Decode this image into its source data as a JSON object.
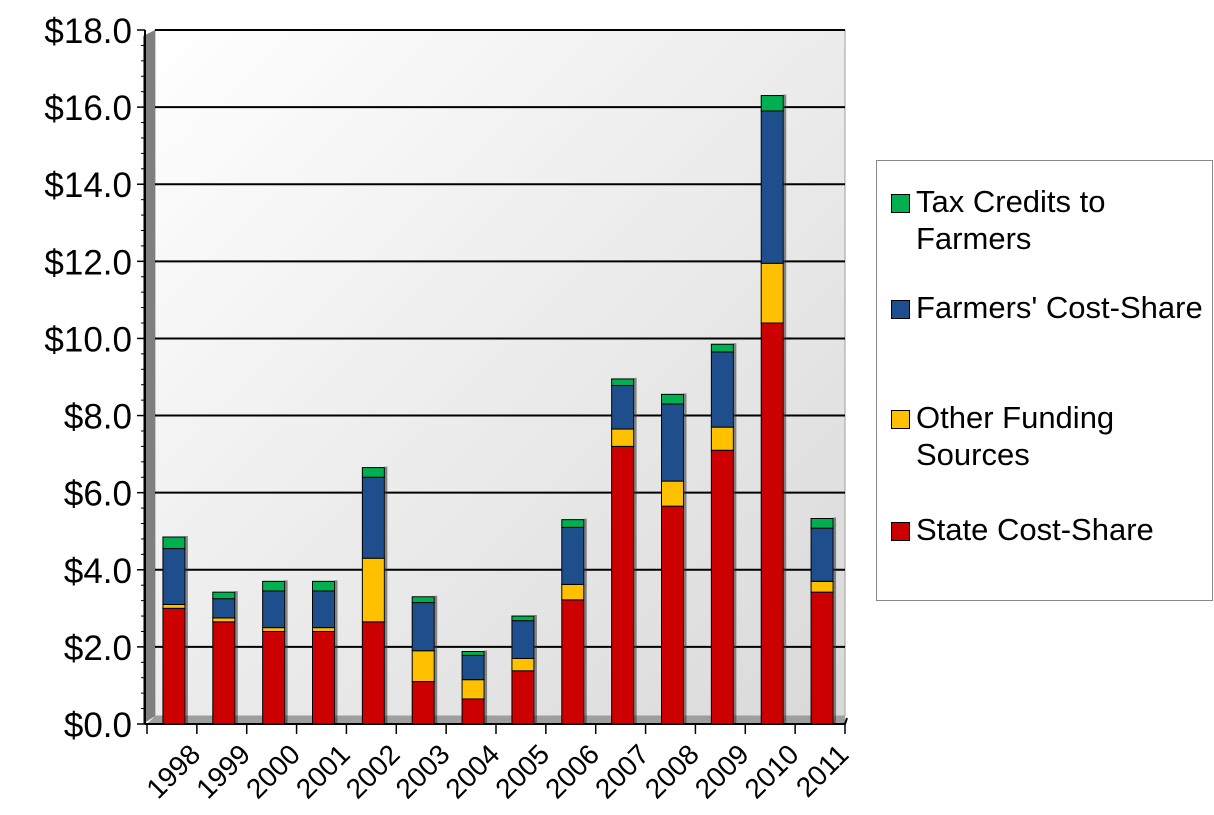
{
  "chart_data": {
    "type": "bar",
    "stacked": true,
    "categories": [
      "1998",
      "1999",
      "2000",
      "2001",
      "2002",
      "2003",
      "2004",
      "2005",
      "2006",
      "2007",
      "2008",
      "2009",
      "2010",
      "2011"
    ],
    "series": [
      {
        "name": "State Cost-Share",
        "color": "#cc0000",
        "values": [
          3.0,
          2.65,
          2.4,
          2.4,
          2.65,
          1.1,
          0.65,
          1.38,
          3.22,
          7.2,
          5.65,
          7.1,
          10.4,
          3.42
        ]
      },
      {
        "name": "Other Funding Sources",
        "color": "#ffc000",
        "values": [
          0.1,
          0.1,
          0.1,
          0.1,
          1.65,
          0.8,
          0.5,
          0.32,
          0.4,
          0.45,
          0.65,
          0.6,
          1.55,
          0.28
        ]
      },
      {
        "name": "Farmers' Cost-Share",
        "color": "#1f4e8c",
        "values": [
          1.45,
          0.5,
          0.95,
          0.95,
          2.1,
          1.25,
          0.63,
          0.98,
          1.48,
          1.13,
          2.0,
          1.95,
          3.95,
          1.38
        ]
      },
      {
        "name": "Tax Credits to Farmers",
        "color": "#00b050",
        "values": [
          0.3,
          0.17,
          0.25,
          0.25,
          0.25,
          0.15,
          0.1,
          0.12,
          0.2,
          0.17,
          0.25,
          0.2,
          0.4,
          0.25
        ]
      }
    ],
    "ylim": [
      0,
      18
    ],
    "yticks": [
      "$0.0",
      "$2.0",
      "$4.0",
      "$6.0",
      "$8.0",
      "$10.0",
      "$12.0",
      "$14.0",
      "$16.0",
      "$18.0"
    ],
    "grid": true,
    "legend_position": "right",
    "title": "",
    "xlabel": "",
    "ylabel": ""
  },
  "legend": {
    "items": [
      {
        "label": "Tax Credits to Farmers",
        "color": "#00b050"
      },
      {
        "label": "Farmers' Cost-Share",
        "color": "#1f4e8c"
      },
      {
        "label": "Other Funding Sources",
        "color": "#ffc000"
      },
      {
        "label": "State Cost-Share",
        "color": "#cc0000"
      }
    ]
  }
}
